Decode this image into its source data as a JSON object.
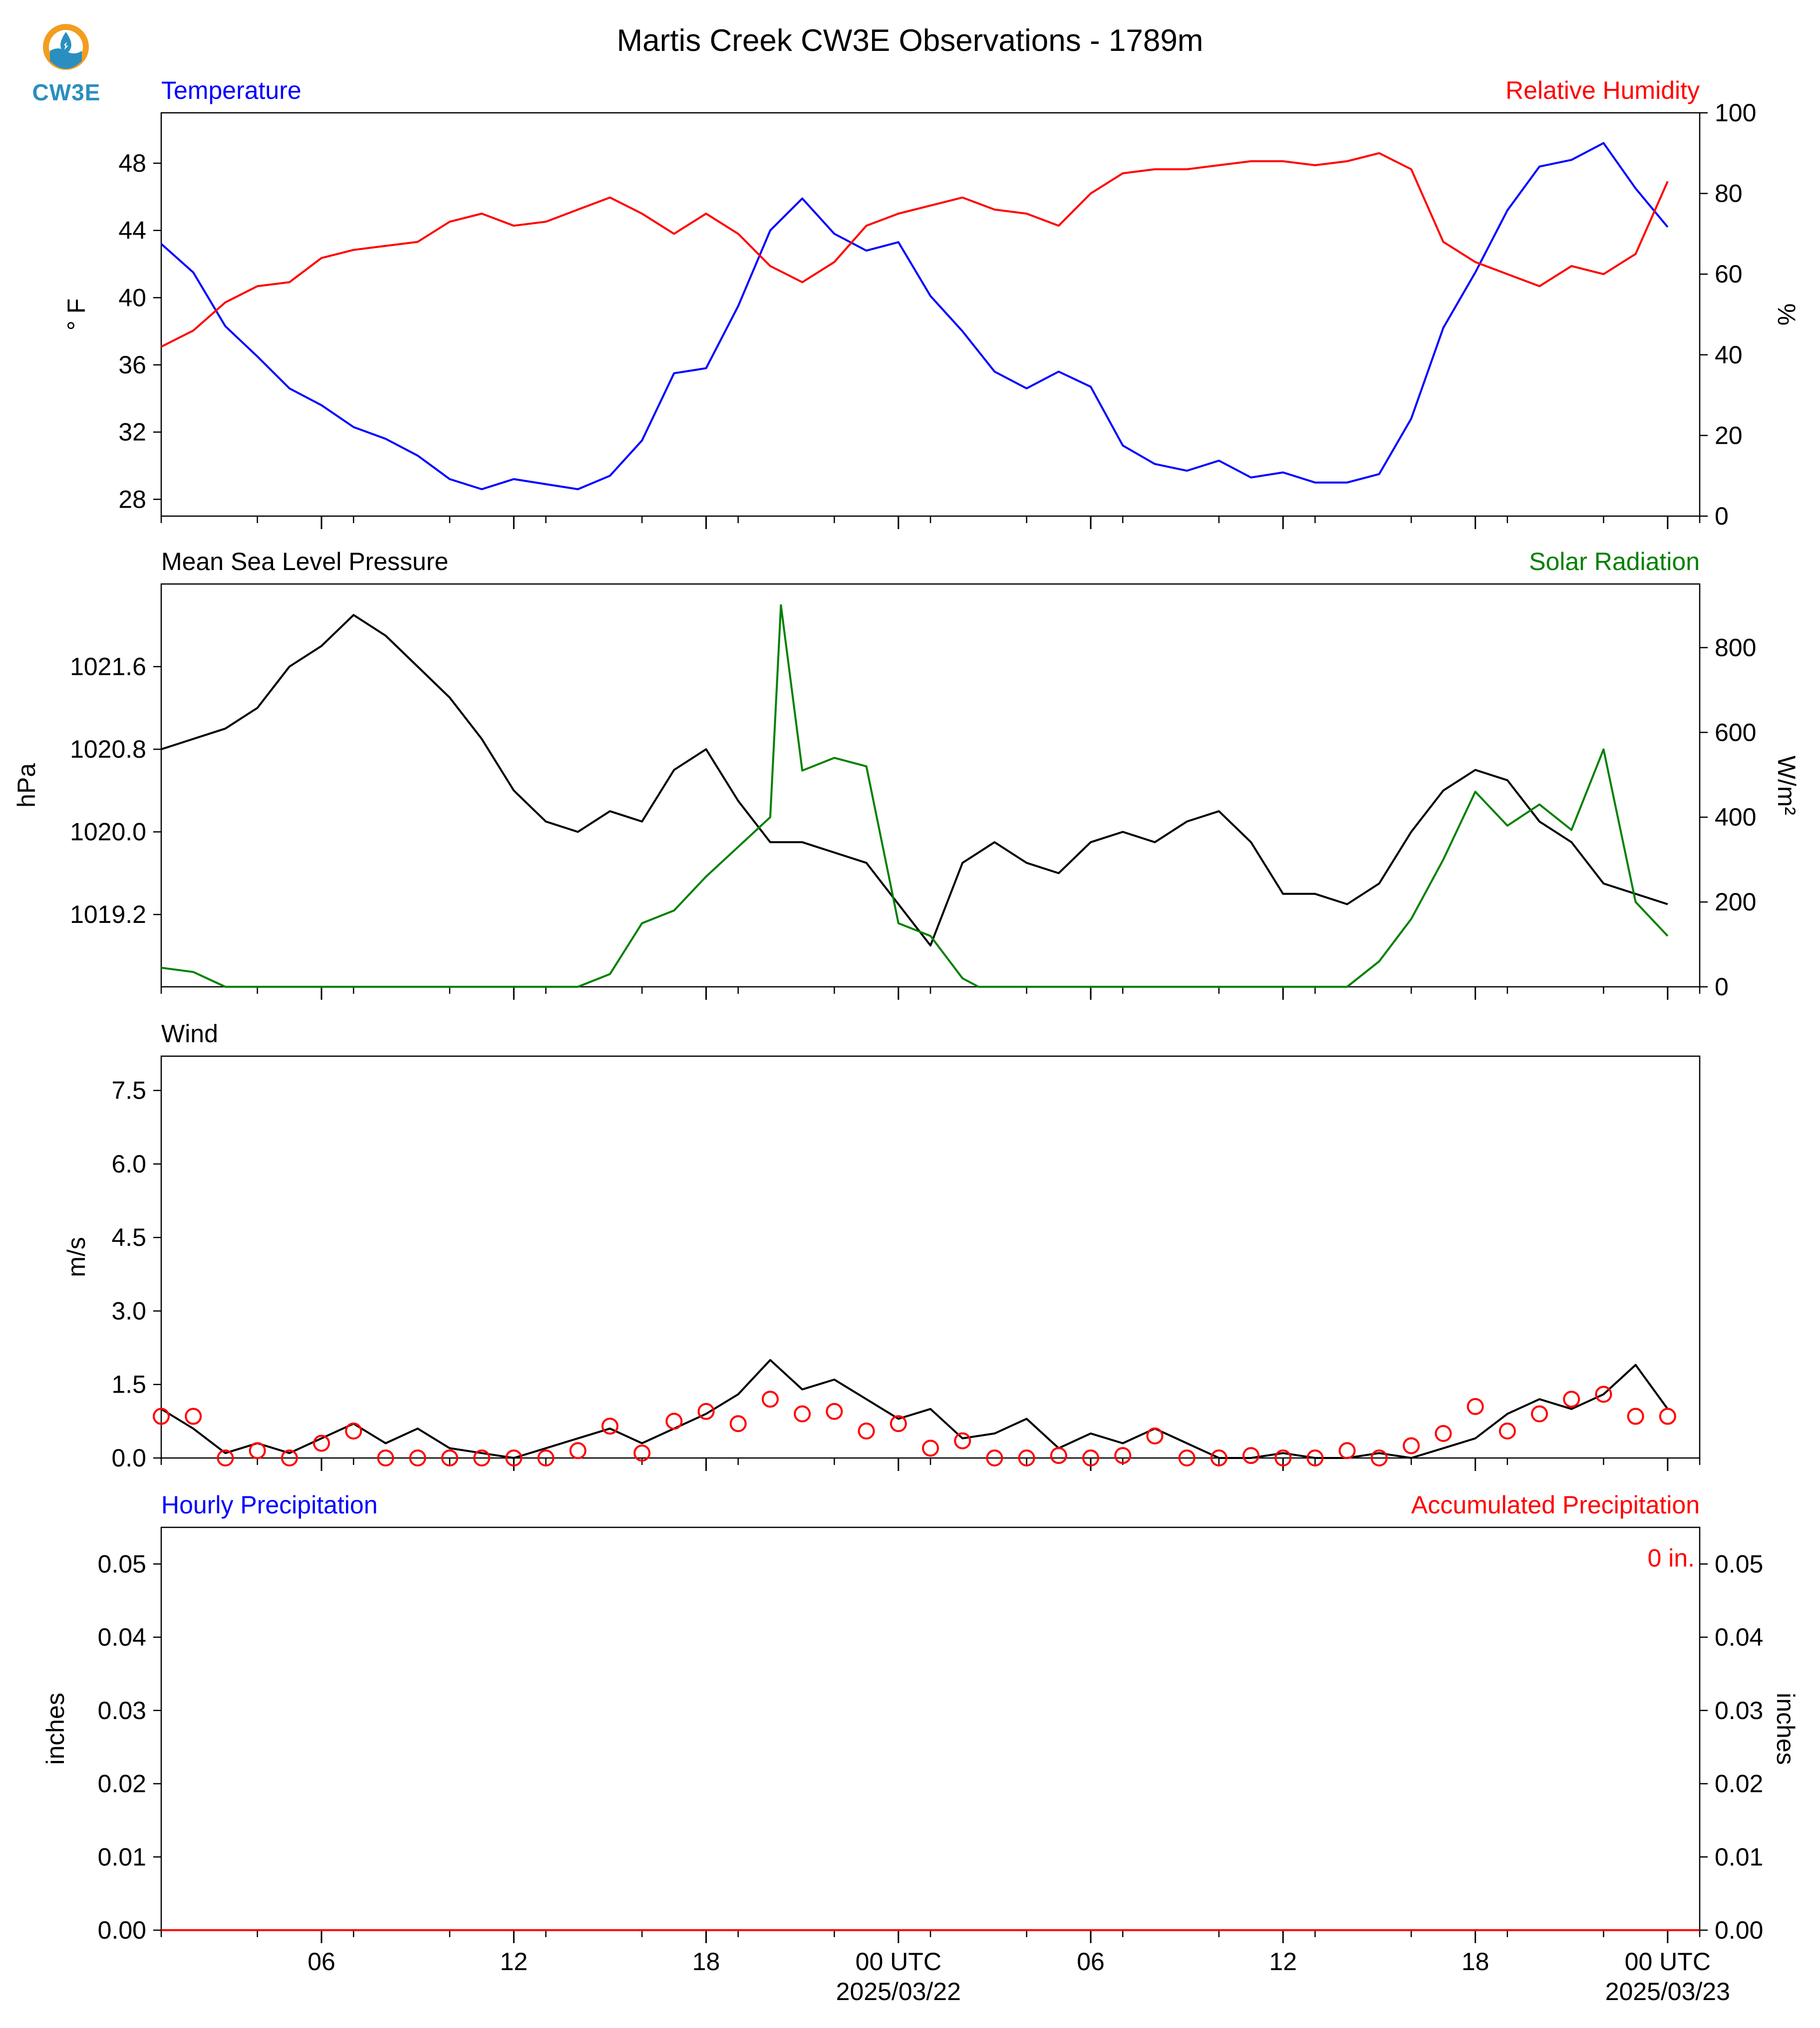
{
  "logo": {
    "label": "CW3E",
    "icon": "water-drop-logo-icon",
    "colors": {
      "ring": "#f39c1f",
      "wave": "#2a8fbf"
    }
  },
  "title": "Martis Creek CW3E Observations - 1789m",
  "colors": {
    "blue": "#0000ff",
    "red": "#ff0000",
    "green": "#008000",
    "black": "#000000"
  },
  "time_axis": {
    "start": "2025-03-21T01:00Z",
    "end": "2025-03-23T01:00Z",
    "tick_labels": [
      "06",
      "12",
      "18",
      "00 UTC",
      "06",
      "12",
      "18",
      "00 UTC"
    ],
    "date_labels": [
      "2025/03/22",
      "2025/03/23"
    ]
  },
  "chart_data": [
    {
      "id": "temp_rh",
      "type": "line",
      "left_title": "Temperature",
      "right_title": "Relative Humidity",
      "ylabel": "° F",
      "ylabel_right": "%",
      "ylim": [
        27,
        51
      ],
      "ylim_right": [
        0,
        100
      ],
      "yticks": [
        "28",
        "32",
        "36",
        "40",
        "44",
        "48"
      ],
      "yticks_right": [
        "0",
        "20",
        "40",
        "60",
        "80",
        "100"
      ],
      "grid": false,
      "series": [
        {
          "name": "Temperature",
          "axis": "left",
          "color": "#0000ff",
          "x": [
            "2025-03-21T01:00Z",
            "2025-03-21T02:00Z",
            "2025-03-21T03:00Z",
            "2025-03-21T04:00Z",
            "2025-03-21T05:00Z",
            "2025-03-21T06:00Z",
            "2025-03-21T07:00Z",
            "2025-03-21T08:00Z",
            "2025-03-21T09:00Z",
            "2025-03-21T10:00Z",
            "2025-03-21T11:00Z",
            "2025-03-21T12:00Z",
            "2025-03-21T13:00Z",
            "2025-03-21T14:00Z",
            "2025-03-21T15:00Z",
            "2025-03-21T16:00Z",
            "2025-03-21T17:00Z",
            "2025-03-21T18:00Z",
            "2025-03-21T19:00Z",
            "2025-03-21T20:00Z",
            "2025-03-21T21:00Z",
            "2025-03-21T22:00Z",
            "2025-03-21T23:00Z",
            "2025-03-22T00:00Z",
            "2025-03-22T01:00Z",
            "2025-03-22T02:00Z",
            "2025-03-22T03:00Z",
            "2025-03-22T04:00Z",
            "2025-03-22T05:00Z",
            "2025-03-22T06:00Z",
            "2025-03-22T07:00Z",
            "2025-03-22T08:00Z",
            "2025-03-22T09:00Z",
            "2025-03-22T10:00Z",
            "2025-03-22T11:00Z",
            "2025-03-22T12:00Z",
            "2025-03-22T13:00Z",
            "2025-03-22T14:00Z",
            "2025-03-22T15:00Z",
            "2025-03-22T16:00Z",
            "2025-03-22T17:00Z",
            "2025-03-22T18:00Z",
            "2025-03-22T19:00Z",
            "2025-03-22T20:00Z",
            "2025-03-22T21:00Z",
            "2025-03-22T22:00Z",
            "2025-03-22T23:00Z",
            "2025-03-23T00:00Z"
          ],
          "values": [
            43.2,
            41.5,
            38.3,
            36.5,
            34.6,
            33.6,
            32.3,
            31.6,
            30.6,
            29.2,
            28.6,
            29.2,
            28.9,
            28.6,
            29.4,
            31.5,
            35.5,
            35.8,
            39.5,
            44.0,
            45.9,
            43.8,
            42.8,
            43.3,
            40.1,
            38.0,
            35.6,
            34.6,
            35.6,
            34.7,
            31.2,
            30.1,
            29.7,
            30.3,
            29.3,
            29.6,
            29.0,
            29.0,
            29.5,
            32.8,
            38.2,
            41.5,
            45.2,
            47.8,
            48.2,
            49.2,
            46.5,
            44.2
          ]
        },
        {
          "name": "Relative Humidity",
          "axis": "right",
          "color": "#ff0000",
          "x": [
            "2025-03-21T01:00Z",
            "2025-03-21T02:00Z",
            "2025-03-21T03:00Z",
            "2025-03-21T04:00Z",
            "2025-03-21T05:00Z",
            "2025-03-21T06:00Z",
            "2025-03-21T07:00Z",
            "2025-03-21T08:00Z",
            "2025-03-21T09:00Z",
            "2025-03-21T10:00Z",
            "2025-03-21T11:00Z",
            "2025-03-21T12:00Z",
            "2025-03-21T13:00Z",
            "2025-03-21T14:00Z",
            "2025-03-21T15:00Z",
            "2025-03-21T16:00Z",
            "2025-03-21T17:00Z",
            "2025-03-21T18:00Z",
            "2025-03-21T19:00Z",
            "2025-03-21T20:00Z",
            "2025-03-21T21:00Z",
            "2025-03-21T22:00Z",
            "2025-03-21T23:00Z",
            "2025-03-22T00:00Z",
            "2025-03-22T01:00Z",
            "2025-03-22T02:00Z",
            "2025-03-22T03:00Z",
            "2025-03-22T04:00Z",
            "2025-03-22T05:00Z",
            "2025-03-22T06:00Z",
            "2025-03-22T07:00Z",
            "2025-03-22T08:00Z",
            "2025-03-22T09:00Z",
            "2025-03-22T10:00Z",
            "2025-03-22T11:00Z",
            "2025-03-22T12:00Z",
            "2025-03-22T13:00Z",
            "2025-03-22T14:00Z",
            "2025-03-22T15:00Z",
            "2025-03-22T16:00Z",
            "2025-03-22T17:00Z",
            "2025-03-22T18:00Z",
            "2025-03-22T19:00Z",
            "2025-03-22T20:00Z",
            "2025-03-22T21:00Z",
            "2025-03-22T22:00Z",
            "2025-03-22T23:00Z",
            "2025-03-23T00:00Z"
          ],
          "values": [
            42,
            46,
            53,
            57,
            58,
            64,
            66,
            67,
            68,
            73,
            75,
            72,
            73,
            76,
            79,
            75,
            70,
            75,
            70,
            62,
            58,
            63,
            72,
            75,
            77,
            79,
            76,
            75,
            72,
            80,
            85,
            86,
            86,
            87,
            88,
            88,
            87,
            88,
            90,
            86,
            68,
            63,
            60,
            57,
            62,
            60,
            65,
            83
          ]
        }
      ]
    },
    {
      "id": "pressure_solar",
      "type": "line",
      "left_title": "Mean Sea Level Pressure",
      "right_title": "Solar Radiation",
      "ylabel": "hPa",
      "ylabel_right": "W/m²",
      "ylim": [
        1018.5,
        1022.4
      ],
      "ylim_right": [
        0,
        950
      ],
      "yticks": [
        "1019.2",
        "1020.0",
        "1020.8",
        "1021.6"
      ],
      "yticks_right": [
        "0",
        "200",
        "400",
        "600",
        "800"
      ],
      "grid": false,
      "series": [
        {
          "name": "Mean Sea Level Pressure",
          "axis": "left",
          "color": "#000000",
          "x": [
            "2025-03-21T01:00Z",
            "2025-03-21T02:00Z",
            "2025-03-21T03:00Z",
            "2025-03-21T04:00Z",
            "2025-03-21T05:00Z",
            "2025-03-21T06:00Z",
            "2025-03-21T07:00Z",
            "2025-03-21T08:00Z",
            "2025-03-21T09:00Z",
            "2025-03-21T10:00Z",
            "2025-03-21T11:00Z",
            "2025-03-21T12:00Z",
            "2025-03-21T13:00Z",
            "2025-03-21T14:00Z",
            "2025-03-21T15:00Z",
            "2025-03-21T16:00Z",
            "2025-03-21T17:00Z",
            "2025-03-21T18:00Z",
            "2025-03-21T19:00Z",
            "2025-03-21T20:00Z",
            "2025-03-21T21:00Z",
            "2025-03-21T22:00Z",
            "2025-03-21T23:00Z",
            "2025-03-22T00:00Z",
            "2025-03-22T01:00Z",
            "2025-03-22T02:00Z",
            "2025-03-22T03:00Z",
            "2025-03-22T04:00Z",
            "2025-03-22T05:00Z",
            "2025-03-22T06:00Z",
            "2025-03-22T07:00Z",
            "2025-03-22T08:00Z",
            "2025-03-22T09:00Z",
            "2025-03-22T10:00Z",
            "2025-03-22T11:00Z",
            "2025-03-22T12:00Z",
            "2025-03-22T13:00Z",
            "2025-03-22T14:00Z",
            "2025-03-22T15:00Z",
            "2025-03-22T16:00Z",
            "2025-03-22T17:00Z",
            "2025-03-22T18:00Z",
            "2025-03-22T19:00Z",
            "2025-03-22T20:00Z",
            "2025-03-22T21:00Z",
            "2025-03-22T22:00Z",
            "2025-03-22T23:00Z",
            "2025-03-23T00:00Z"
          ],
          "values": [
            1020.8,
            1020.9,
            1021.0,
            1021.2,
            1021.6,
            1021.8,
            1022.1,
            1021.9,
            1021.6,
            1021.3,
            1020.9,
            1020.4,
            1020.1,
            1020.0,
            1020.2,
            1020.1,
            1020.6,
            1020.8,
            1020.3,
            1019.9,
            1019.9,
            1019.8,
            1019.7,
            1019.3,
            1018.9,
            1019.7,
            1019.9,
            1019.7,
            1019.6,
            1019.9,
            1020.0,
            1019.9,
            1020.1,
            1020.2,
            1019.9,
            1019.4,
            1019.4,
            1019.3,
            1019.5,
            1020.0,
            1020.4,
            1020.6,
            1020.5,
            1020.1,
            1019.9,
            1019.5,
            1019.4,
            1019.3
          ]
        },
        {
          "name": "Solar Radiation",
          "axis": "right",
          "color": "#008000",
          "x": [
            "2025-03-21T01:00Z",
            "2025-03-21T02:00Z",
            "2025-03-21T03:00Z",
            "2025-03-21T14:00Z",
            "2025-03-21T15:00Z",
            "2025-03-21T16:00Z",
            "2025-03-21T17:00Z",
            "2025-03-21T18:00Z",
            "2025-03-21T19:00Z",
            "2025-03-21T20:00Z",
            "2025-03-21T20:20Z",
            "2025-03-21T21:00Z",
            "2025-03-21T22:00Z",
            "2025-03-21T23:00Z",
            "2025-03-22T00:00Z",
            "2025-03-22T01:00Z",
            "2025-03-22T02:00Z",
            "2025-03-22T02:30Z",
            "2025-03-22T14:00Z",
            "2025-03-22T15:00Z",
            "2025-03-22T16:00Z",
            "2025-03-22T17:00Z",
            "2025-03-22T18:00Z",
            "2025-03-22T19:00Z",
            "2025-03-22T20:00Z",
            "2025-03-22T21:00Z",
            "2025-03-22T22:00Z",
            "2025-03-22T23:00Z",
            "2025-03-23T00:00Z"
          ],
          "values": [
            45,
            35,
            0,
            0,
            30,
            150,
            180,
            260,
            330,
            400,
            900,
            510,
            540,
            520,
            150,
            120,
            20,
            0,
            0,
            60,
            160,
            300,
            460,
            380,
            430,
            370,
            560,
            200,
            120
          ]
        }
      ]
    },
    {
      "id": "wind",
      "type": "line",
      "left_title": "Wind",
      "ylabel": "m/s",
      "ylim": [
        0,
        8.2
      ],
      "yticks": [
        "0.0",
        "1.5",
        "3.0",
        "4.5",
        "6.0",
        "7.5"
      ],
      "grid": false,
      "series": [
        {
          "name": "Wind",
          "axis": "left",
          "color": "#000000",
          "x": [
            "2025-03-21T01:00Z",
            "2025-03-21T02:00Z",
            "2025-03-21T03:00Z",
            "2025-03-21T04:00Z",
            "2025-03-21T05:00Z",
            "2025-03-21T06:00Z",
            "2025-03-21T07:00Z",
            "2025-03-21T08:00Z",
            "2025-03-21T09:00Z",
            "2025-03-21T10:00Z",
            "2025-03-21T11:00Z",
            "2025-03-21T12:00Z",
            "2025-03-21T13:00Z",
            "2025-03-21T14:00Z",
            "2025-03-21T15:00Z",
            "2025-03-21T16:00Z",
            "2025-03-21T17:00Z",
            "2025-03-21T18:00Z",
            "2025-03-21T19:00Z",
            "2025-03-21T20:00Z",
            "2025-03-21T21:00Z",
            "2025-03-21T22:00Z",
            "2025-03-21T23:00Z",
            "2025-03-22T00:00Z",
            "2025-03-22T01:00Z",
            "2025-03-22T02:00Z",
            "2025-03-22T03:00Z",
            "2025-03-22T04:00Z",
            "2025-03-22T05:00Z",
            "2025-03-22T06:00Z",
            "2025-03-22T07:00Z",
            "2025-03-22T08:00Z",
            "2025-03-22T09:00Z",
            "2025-03-22T10:00Z",
            "2025-03-22T11:00Z",
            "2025-03-22T12:00Z",
            "2025-03-22T13:00Z",
            "2025-03-22T14:00Z",
            "2025-03-22T15:00Z",
            "2025-03-22T16:00Z",
            "2025-03-22T17:00Z",
            "2025-03-22T18:00Z",
            "2025-03-22T19:00Z",
            "2025-03-22T20:00Z",
            "2025-03-22T21:00Z",
            "2025-03-22T22:00Z",
            "2025-03-22T23:00Z",
            "2025-03-23T00:00Z"
          ],
          "values": [
            1.0,
            0.6,
            0.1,
            0.3,
            0.1,
            0.4,
            0.7,
            0.3,
            0.6,
            0.2,
            0.1,
            0.0,
            0.2,
            0.4,
            0.6,
            0.3,
            0.6,
            0.9,
            1.3,
            2.0,
            1.4,
            1.6,
            1.2,
            0.8,
            1.0,
            0.4,
            0.5,
            0.8,
            0.2,
            0.5,
            0.3,
            0.6,
            0.3,
            0.0,
            0.0,
            0.1,
            0.0,
            0.0,
            0.1,
            0.0,
            0.2,
            0.4,
            0.9,
            1.2,
            1.0,
            1.3,
            1.9,
            1.0
          ]
        },
        {
          "name": "Wind Direction Markers",
          "axis": "left",
          "color": "#ff0000",
          "marker": "circle",
          "x": [
            "2025-03-21T01:00Z",
            "2025-03-21T02:00Z",
            "2025-03-21T03:00Z",
            "2025-03-21T04:00Z",
            "2025-03-21T05:00Z",
            "2025-03-21T06:00Z",
            "2025-03-21T07:00Z",
            "2025-03-21T08:00Z",
            "2025-03-21T09:00Z",
            "2025-03-21T10:00Z",
            "2025-03-21T11:00Z",
            "2025-03-21T12:00Z",
            "2025-03-21T13:00Z",
            "2025-03-21T14:00Z",
            "2025-03-21T15:00Z",
            "2025-03-21T16:00Z",
            "2025-03-21T17:00Z",
            "2025-03-21T18:00Z",
            "2025-03-21T19:00Z",
            "2025-03-21T20:00Z",
            "2025-03-21T21:00Z",
            "2025-03-21T22:00Z",
            "2025-03-21T23:00Z",
            "2025-03-22T00:00Z",
            "2025-03-22T01:00Z",
            "2025-03-22T02:00Z",
            "2025-03-22T03:00Z",
            "2025-03-22T04:00Z",
            "2025-03-22T05:00Z",
            "2025-03-22T06:00Z",
            "2025-03-22T07:00Z",
            "2025-03-22T08:00Z",
            "2025-03-22T09:00Z",
            "2025-03-22T10:00Z",
            "2025-03-22T11:00Z",
            "2025-03-22T12:00Z",
            "2025-03-22T13:00Z",
            "2025-03-22T14:00Z",
            "2025-03-22T15:00Z",
            "2025-03-22T16:00Z",
            "2025-03-22T17:00Z",
            "2025-03-22T18:00Z",
            "2025-03-22T19:00Z",
            "2025-03-22T20:00Z",
            "2025-03-22T21:00Z",
            "2025-03-22T22:00Z",
            "2025-03-22T23:00Z",
            "2025-03-23T00:00Z"
          ],
          "values": [
            0.85,
            0.85,
            0.0,
            0.15,
            0.0,
            0.3,
            0.55,
            0.0,
            0.0,
            0.0,
            0.0,
            0.0,
            0.0,
            0.15,
            0.65,
            0.1,
            0.75,
            0.95,
            0.7,
            1.2,
            0.9,
            0.95,
            0.55,
            0.7,
            0.2,
            0.35,
            0.0,
            0.0,
            0.05,
            0.0,
            0.05,
            0.45,
            0.0,
            0.0,
            0.05,
            0.0,
            0.0,
            0.15,
            0.0,
            0.25,
            0.5,
            1.05,
            0.55,
            0.9,
            1.2,
            1.3,
            0.85,
            0.85
          ]
        }
      ]
    },
    {
      "id": "precip",
      "type": "line",
      "left_title": "Hourly Precipitation",
      "right_title": "Accumulated Precipitation",
      "ylabel": "inches",
      "ylabel_right": "inches",
      "ylim": [
        0,
        0.055
      ],
      "ylim_right": [
        0,
        0.055
      ],
      "yticks": [
        "0.00",
        "0.01",
        "0.02",
        "0.03",
        "0.04",
        "0.05"
      ],
      "yticks_right": [
        "0.00",
        "0.01",
        "0.02",
        "0.03",
        "0.04",
        "0.05"
      ],
      "annotation": "0 in.",
      "grid": false,
      "series": [
        {
          "name": "Hourly Precipitation",
          "axis": "left",
          "color": "#0000ff",
          "x": [
            "2025-03-21T01:00Z",
            "2025-03-23T01:00Z"
          ],
          "values": [
            0,
            0
          ]
        },
        {
          "name": "Accumulated Precipitation",
          "axis": "right",
          "color": "#ff0000",
          "x": [
            "2025-03-21T01:00Z",
            "2025-03-23T01:00Z"
          ],
          "values": [
            0,
            0
          ]
        }
      ]
    }
  ]
}
